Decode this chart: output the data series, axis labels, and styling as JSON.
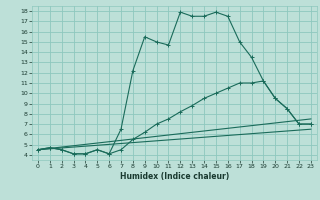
{
  "xlabel": "Humidex (Indice chaleur)",
  "bg_color": "#bde0d8",
  "grid_color": "#8ec8be",
  "line_color": "#1a6b5a",
  "xlim": [
    -0.5,
    23.5
  ],
  "ylim": [
    3.5,
    18.5
  ],
  "xticks": [
    0,
    1,
    2,
    3,
    4,
    5,
    6,
    7,
    8,
    9,
    10,
    11,
    12,
    13,
    14,
    15,
    16,
    17,
    18,
    19,
    20,
    21,
    22,
    23
  ],
  "yticks": [
    4,
    5,
    6,
    7,
    8,
    9,
    10,
    11,
    12,
    13,
    14,
    15,
    16,
    17,
    18
  ],
  "curve1_x": [
    0,
    1,
    2,
    3,
    4,
    5,
    6,
    7,
    8,
    9,
    10,
    11,
    12,
    13,
    14,
    15,
    16,
    17,
    18,
    19,
    20,
    21,
    22,
    23
  ],
  "curve1_y": [
    4.5,
    4.7,
    4.5,
    4.1,
    4.1,
    4.5,
    4.1,
    6.5,
    12.2,
    15.5,
    15.0,
    14.7,
    17.9,
    17.5,
    17.5,
    17.9,
    17.5,
    15.0,
    13.5,
    11.2,
    9.5,
    8.5,
    7.0,
    7.0
  ],
  "curve2_x": [
    0,
    1,
    2,
    3,
    4,
    5,
    6,
    7,
    8,
    9,
    10,
    11,
    12,
    13,
    14,
    15,
    16,
    17,
    18,
    19,
    20,
    21,
    22,
    23
  ],
  "curve2_y": [
    4.5,
    4.7,
    4.5,
    4.1,
    4.1,
    4.5,
    4.1,
    4.5,
    5.5,
    6.2,
    7.0,
    7.5,
    8.2,
    8.8,
    9.5,
    10.0,
    10.5,
    11.0,
    11.0,
    11.2,
    9.5,
    8.5,
    7.0,
    7.0
  ],
  "line1_x": [
    0,
    23
  ],
  "line1_y": [
    4.5,
    7.5
  ],
  "line2_x": [
    0,
    23
  ],
  "line2_y": [
    4.5,
    6.5
  ]
}
